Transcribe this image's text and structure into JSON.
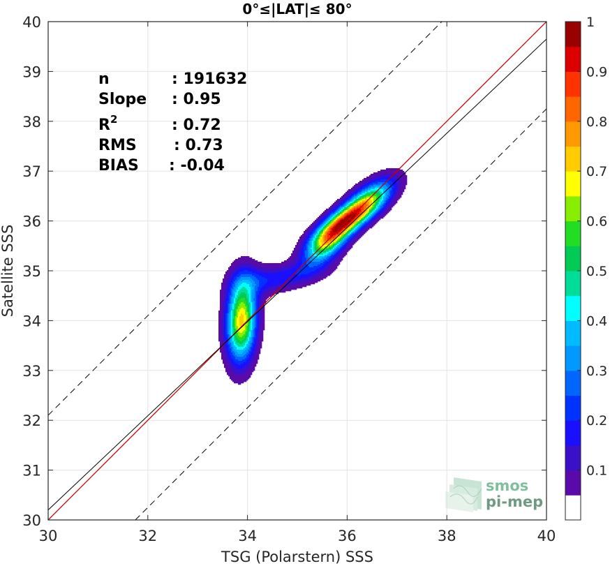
{
  "chart_data": {
    "type": "density-scatter",
    "title": "0°≤|LAT|≤ 80°",
    "xlabel": "TSG (Polarstern) SSS",
    "ylabel": "Satellite SSS",
    "xlim": [
      30,
      40
    ],
    "ylim": [
      30,
      40
    ],
    "xticks": [
      "30",
      "32",
      "34",
      "36",
      "38",
      "40"
    ],
    "yticks": [
      "30",
      "31",
      "32",
      "33",
      "34",
      "35",
      "36",
      "37",
      "38",
      "39",
      "40"
    ],
    "grid": true,
    "stats": [
      {
        "label": "n",
        "value": ": 191632"
      },
      {
        "label": "Slope",
        "value": ": 0.95"
      },
      {
        "label": "R",
        "sup": "2",
        "value": ": 0.72"
      },
      {
        "label": "RMS",
        "value": ": 0.73"
      },
      {
        "label": "BIAS",
        "value": ": -0.04"
      }
    ],
    "reference_lines": [
      {
        "name": "one-to-one",
        "color": "#c00000",
        "x": [
          30,
          40
        ],
        "y": [
          30,
          40
        ]
      },
      {
        "name": "regression",
        "color": "#000000",
        "x": [
          30,
          40
        ],
        "y": [
          30.2,
          39.65
        ]
      },
      {
        "name": "upper-bound",
        "color": "#000000",
        "dashed": true,
        "x": [
          30,
          40
        ],
        "y": [
          32.1,
          42.1
        ]
      },
      {
        "name": "lower-bound",
        "color": "#000000",
        "dashed": true,
        "x": [
          31.75,
          40
        ],
        "y": [
          30,
          38.25
        ]
      }
    ],
    "density_components": [
      {
        "cx": 33.88,
        "cy": 34.0,
        "sx": 0.2,
        "sy": 0.55,
        "rho": 0.1,
        "w": 0.72
      },
      {
        "cx": 36.0,
        "cy": 36.02,
        "sx": 0.42,
        "sy": 0.32,
        "rho": 0.78,
        "w": 0.75
      },
      {
        "cx": 35.6,
        "cy": 35.55,
        "sx": 0.3,
        "sy": 0.3,
        "rho": 0.6,
        "w": 0.5
      },
      {
        "cx": 36.45,
        "cy": 36.45,
        "sx": 0.35,
        "sy": 0.3,
        "rho": 0.65,
        "w": 0.38
      },
      {
        "cx": 34.9,
        "cy": 34.9,
        "sx": 0.5,
        "sy": 0.2,
        "rho": 0.5,
        "w": 0.16
      },
      {
        "cx": 34.15,
        "cy": 34.8,
        "sx": 0.35,
        "sy": 0.22,
        "rho": 0.2,
        "w": 0.12
      }
    ],
    "colorbar": {
      "range": [
        0,
        1
      ],
      "ticks": [
        "0.1",
        "0.2",
        "0.3",
        "0.4",
        "0.5",
        "0.6",
        "0.7",
        "0.8",
        "0.9",
        "1"
      ],
      "levels": [
        0.05,
        0.1,
        0.15,
        0.2,
        0.25,
        0.3,
        0.35,
        0.4,
        0.45,
        0.5,
        0.55,
        0.6,
        0.65,
        0.7,
        0.75,
        0.8,
        0.85,
        0.9,
        0.95
      ],
      "colors": [
        "#ffffff",
        "#5a0aa8",
        "#3a10c8",
        "#1a10ff",
        "#0033ff",
        "#0066ff",
        "#0099ff",
        "#00bbff",
        "#00ffff",
        "#00dd99",
        "#00cc55",
        "#22dd22",
        "#88ee00",
        "#ffff00",
        "#ffcc00",
        "#ff9900",
        "#ff6600",
        "#ff3300",
        "#dd0000",
        "#990000"
      ]
    }
  },
  "logo": {
    "line1": "smos",
    "line2": "pi-mep",
    "color": "#7fbf9a"
  }
}
